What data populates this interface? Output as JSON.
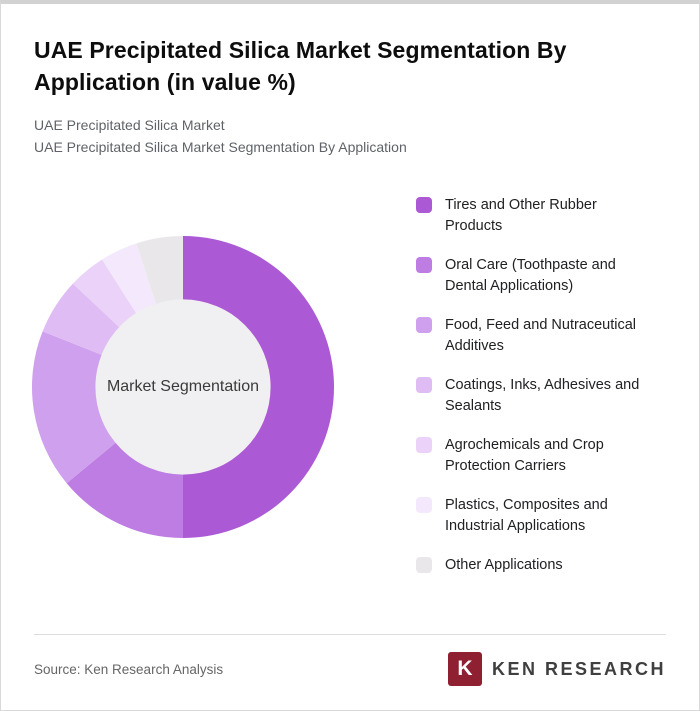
{
  "page": {
    "title": "UAE Precipitated Silica Market Segmentation By Application (in value %)",
    "subtitle_line1": "UAE Precipitated Silica Market",
    "subtitle_line2": "UAE Precipitated Silica Market Segmentation By Application",
    "source": "Source: Ken Research Analysis"
  },
  "logo": {
    "mark": "K",
    "text": "KEN RESEARCH",
    "mark_color": "#8E2031"
  },
  "chart_data": {
    "type": "pie",
    "donut": true,
    "title": "UAE Precipitated Silica Market Segmentation By Application (in value %)",
    "center_label": "Market Segmentation",
    "legend_position": "right",
    "start_angle_deg": 0,
    "direction": "clockwise",
    "inner_radius_ratio": 0.58,
    "inner_color": "#F0EFF1",
    "categories": [
      "Tires and Other Rubber Products",
      "Oral Care (Toothpaste and Dental Applications)",
      "Food, Feed and Nutraceutical Additives",
      "Coatings, Inks, Adhesives and Sealants",
      "Agrochemicals and Crop Protection Carriers",
      "Plastics, Composites and Industrial Applications",
      "Other Applications"
    ],
    "values": [
      50,
      14,
      17,
      6,
      4,
      4,
      5
    ],
    "colors": [
      "#AC59D6",
      "#BD7DE3",
      "#CFA0ED",
      "#DFBDF4",
      "#EAD2F8",
      "#F4E9FC",
      "#E9E7EA"
    ]
  }
}
